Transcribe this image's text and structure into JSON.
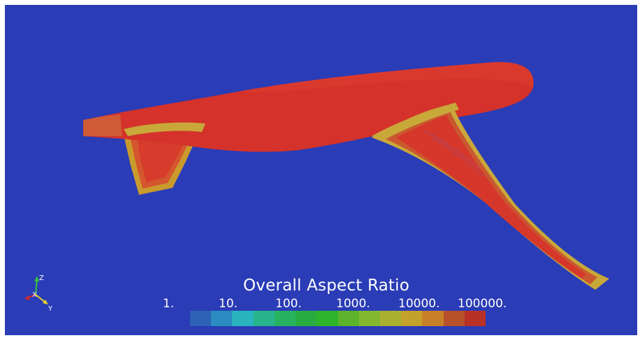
{
  "legend": {
    "title": "Overall Aspect Ratio",
    "ticks": [
      "1.",
      "10.",
      "100.",
      "1000.",
      "10000.",
      "100000."
    ],
    "colors": [
      "#2d63b6",
      "#2a8cc0",
      "#2ab4bd",
      "#27b38c",
      "#27b25f",
      "#28ac3f",
      "#2db42a",
      "#5db42c",
      "#84b82f",
      "#a9b02f",
      "#c3a12a",
      "#c88028",
      "#b7512a",
      "#b93026"
    ]
  },
  "axes": {
    "x": "X",
    "y": "Y",
    "z": "Z"
  },
  "scene": {
    "background": "#2a3cb6",
    "surface_color": "#d4322a",
    "edge_color": "#c9a83a",
    "wing_color": "#c95a34"
  }
}
